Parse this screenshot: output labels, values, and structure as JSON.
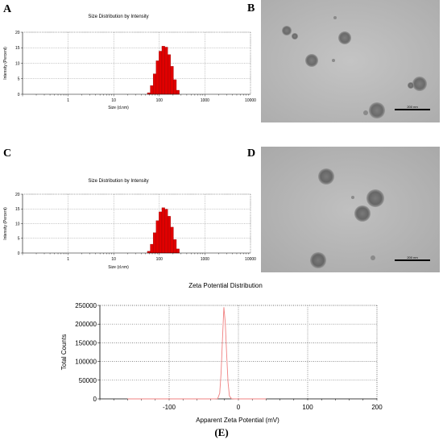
{
  "panels": {
    "a": "A",
    "b": "B",
    "c": "C",
    "d": "D",
    "e": "(E)"
  },
  "tem": {
    "b_scale_label": "200 nm",
    "d_scale_label": "200 nm"
  },
  "chart_data": [
    {
      "id": "A",
      "type": "bar",
      "title": "Size Distribution by Intensity",
      "xlabel": "Size (d.nm)",
      "ylabel": "Intensity (Percent)",
      "xscale": "log",
      "xlim": [
        0.1,
        10000
      ],
      "ylim": [
        0,
        20
      ],
      "xticks": [
        1,
        10,
        100,
        1000,
        10000
      ],
      "xtick_labels": [
        "1",
        "10",
        "100",
        "1000",
        "10000"
      ],
      "yticks": [
        0,
        5,
        10,
        15,
        20
      ],
      "grid": true,
      "color": "#e00000",
      "bars": [
        {
          "x": 58.8,
          "value": 0.5
        },
        {
          "x": 68.1,
          "value": 2.8
        },
        {
          "x": 78.8,
          "value": 6.6
        },
        {
          "x": 91.3,
          "value": 10.8
        },
        {
          "x": 105.7,
          "value": 13.9
        },
        {
          "x": 122.4,
          "value": 15.5
        },
        {
          "x": 141.8,
          "value": 15.2
        },
        {
          "x": 164.2,
          "value": 12.8
        },
        {
          "x": 190.1,
          "value": 9.0
        },
        {
          "x": 220.2,
          "value": 4.7
        },
        {
          "x": 255.0,
          "value": 1.3
        }
      ]
    },
    {
      "id": "C",
      "type": "bar",
      "title": "Size Distribution by Intensity",
      "xlabel": "Size (d.nm)",
      "ylabel": "Intensity (Percent)",
      "xscale": "log",
      "xlim": [
        0.1,
        10000
      ],
      "ylim": [
        0,
        20
      ],
      "xticks": [
        1,
        10,
        100,
        1000,
        10000
      ],
      "xtick_labels": [
        "1",
        "10",
        "100",
        "1000",
        "10000"
      ],
      "yticks": [
        0,
        5,
        10,
        15,
        20
      ],
      "grid": true,
      "color": "#e00000",
      "bars": [
        {
          "x": 58.8,
          "value": 0.6
        },
        {
          "x": 68.1,
          "value": 3.0
        },
        {
          "x": 78.8,
          "value": 6.9
        },
        {
          "x": 91.3,
          "value": 11.0
        },
        {
          "x": 105.7,
          "value": 14.0
        },
        {
          "x": 122.4,
          "value": 15.4
        },
        {
          "x": 141.8,
          "value": 14.9
        },
        {
          "x": 164.2,
          "value": 12.5
        },
        {
          "x": 190.1,
          "value": 8.8
        },
        {
          "x": 220.2,
          "value": 4.6
        },
        {
          "x": 255.0,
          "value": 1.4
        }
      ]
    },
    {
      "id": "E",
      "type": "line",
      "title": "Zeta Potential Distribution",
      "xlabel": "Apparent Zeta Potential (mV)",
      "ylabel": "Total Counts",
      "xlim": [
        -200,
        200
      ],
      "ylim": [
        0,
        250000
      ],
      "xticks": [
        -100,
        0,
        100,
        200
      ],
      "yticks": [
        0,
        50000,
        100000,
        150000,
        200000,
        250000
      ],
      "grid": true,
      "color": "#f08080",
      "series": [
        {
          "x": [
            -160,
            -35,
            -30,
            -27,
            -25,
            -23,
            -21,
            -19,
            -17,
            -15,
            -13,
            -10,
            -5,
            40
          ],
          "values": [
            0,
            0,
            500,
            15000,
            70000,
            160000,
            245000,
            205000,
            120000,
            45000,
            8000,
            500,
            0,
            0
          ]
        }
      ]
    }
  ]
}
